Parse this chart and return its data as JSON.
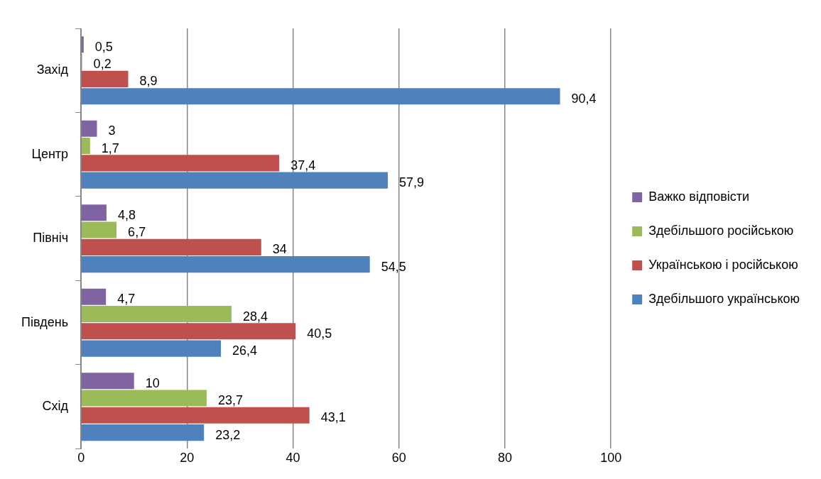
{
  "chart_data": {
    "type": "bar",
    "orientation": "horizontal",
    "categories": [
      "Захід",
      "Центр",
      "Північ",
      "Південь",
      "Схід"
    ],
    "series": [
      {
        "name": "Важко відповісти",
        "color": "#8064a2",
        "values": [
          0.5,
          3,
          4.8,
          4.7,
          10
        ],
        "value_labels": [
          "0,5",
          "3",
          "4,8",
          "4,7",
          "10"
        ]
      },
      {
        "name": "Здебільшого російською",
        "color": "#9bbb59",
        "values": [
          0.2,
          1.7,
          6.7,
          28.4,
          23.7
        ],
        "value_labels": [
          "0,2",
          "1,7",
          "6,7",
          "28,4",
          "23,7"
        ]
      },
      {
        "name": "Українською і російською",
        "color": "#c0504d",
        "values": [
          8.9,
          37.4,
          34,
          40.5,
          43.1
        ],
        "value_labels": [
          "8,9",
          "37,4",
          "34",
          "40,5",
          "43,1"
        ]
      },
      {
        "name": "Здебільшого українською",
        "color": "#4f81bd",
        "values": [
          90.4,
          57.9,
          54.5,
          26.4,
          23.2
        ],
        "value_labels": [
          "90,4",
          "57,9",
          "54,5",
          "26,4",
          "23,2"
        ]
      }
    ],
    "xlim": [
      0,
      100
    ],
    "xticks": [
      0,
      20,
      40,
      60,
      80,
      100
    ],
    "grid": "x",
    "legend": "right"
  }
}
